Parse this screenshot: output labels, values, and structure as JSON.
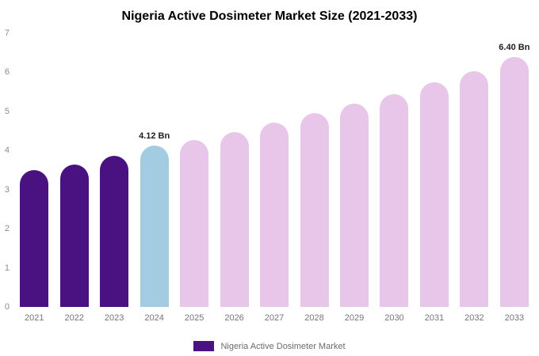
{
  "chart_data": {
    "type": "bar",
    "title": "Nigeria Active Dosimeter Market Size (2021-2033)",
    "categories": [
      "2021",
      "2022",
      "2023",
      "2024",
      "2025",
      "2026",
      "2027",
      "2028",
      "2029",
      "2030",
      "2031",
      "2032",
      "2033"
    ],
    "values": [
      3.5,
      3.65,
      3.87,
      4.12,
      4.27,
      4.48,
      4.72,
      4.95,
      5.2,
      5.45,
      5.75,
      6.03,
      6.4
    ],
    "data_labels": [
      "",
      "",
      "",
      "4.12 Bn",
      "",
      "",
      "",
      "",
      "",
      "",
      "",
      "",
      "6.40 Bn"
    ],
    "bar_colors": [
      "#4a1181",
      "#4a1181",
      "#4a1181",
      "#a3cbe1",
      "#e8c6e9",
      "#e8c6e9",
      "#e8c6e9",
      "#e8c6e9",
      "#e8c6e9",
      "#e8c6e9",
      "#e8c6e9",
      "#e8c6e9",
      "#e8c6e9"
    ],
    "xlabel": "",
    "ylabel": "",
    "ylim": [
      0,
      7
    ],
    "y_ticks": [
      0,
      1,
      2,
      3,
      4,
      5,
      6,
      7
    ],
    "grid": false,
    "legend": {
      "label": "Nigeria Active Dosimeter Market",
      "swatch_color": "#4a1181",
      "position": "bottom"
    }
  }
}
